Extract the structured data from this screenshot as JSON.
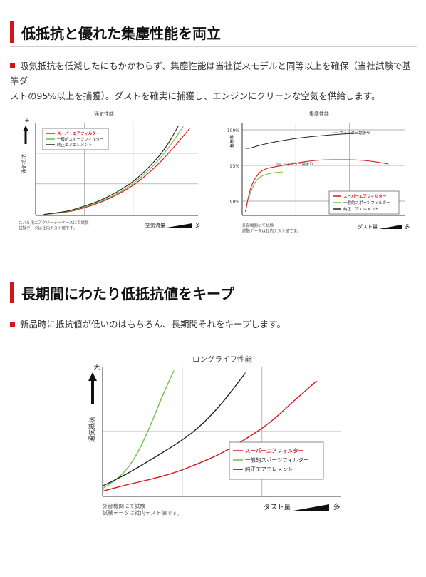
{
  "section1": {
    "title": "低抵抗と優れた集塵性能を両立",
    "desc_line1": "吸気抵抗を低減したにもかかわらず、集塵性能は当社従来モデルと同等以上を確保（当社試験で基準ダ",
    "desc_line2": "ストの95%以上を捕獲）。ダストを確実に捕獲し、エンジンにクリーンな空気を供給します。"
  },
  "section2": {
    "title": "長期間にわたり低抵抗値をキープ",
    "desc": "新品時に抵抗値が低いのはもちろん、長期間それをキープします。"
  },
  "colors": {
    "accent": "#d7141a",
    "super_air_filter": "#d7141a",
    "sports_filter": "#6cbf4a",
    "oem_element": "#222222",
    "grid": "#9a9a9a"
  },
  "chart_data": [
    {
      "type": "line",
      "title": "通気性能",
      "ylabel": "通気抵抗",
      "y_high_label": "大",
      "xlabel": "空気流量",
      "x_high_label": "多",
      "xlim": [
        0,
        10
      ],
      "ylim": [
        0,
        10
      ],
      "grid": true,
      "legend_position": "top-left",
      "footnote_line1": "スバル用エアクリーナーケースにて試験",
      "footnote_line2": "試験データは社内テスト値です。",
      "series": [
        {
          "name": "スーパーエアフィルター",
          "color": "#d7141a",
          "x": [
            0.5,
            2,
            3,
            4,
            5,
            6,
            7,
            8,
            9.5
          ],
          "y": [
            0.1,
            0.35,
            0.8,
            1.4,
            2.2,
            3.2,
            4.6,
            6.3,
            9.4
          ]
        },
        {
          "name": "一般的スポーツフィルター",
          "color": "#6cbf4a",
          "x": [
            0.5,
            2,
            3,
            4,
            5,
            6,
            7,
            8,
            9.1
          ],
          "y": [
            0.1,
            0.4,
            0.9,
            1.5,
            2.3,
            3.4,
            4.9,
            6.8,
            9.6
          ]
        },
        {
          "name": "純正エアエレメント",
          "color": "#222222",
          "x": [
            0.5,
            2,
            3,
            4,
            5,
            6,
            7,
            8,
            8.8
          ],
          "y": [
            0.1,
            0.45,
            1.0,
            1.6,
            2.5,
            3.6,
            5.2,
            7.2,
            9.7
          ]
        }
      ]
    },
    {
      "type": "line",
      "title": "集塵性能",
      "ylabel": "集塵率",
      "xlabel": "ダスト量",
      "x_high_label": "多",
      "xlim": [
        0,
        10
      ],
      "ylim": [
        88,
        101
      ],
      "yticks": [
        90,
        95,
        100
      ],
      "ytick_labels": [
        "90%",
        "95%",
        "100%"
      ],
      "grid": true,
      "legend_position": "bottom-right",
      "footnote_line1": "外部機関にて試験",
      "footnote_line2": "試験データは社内テスト値です。",
      "annotations": [
        "フィルター詰まり",
        "フィルター詰まり"
      ],
      "series": [
        {
          "name": "スーパーエアフィルター",
          "color": "#d7141a",
          "x": [
            0.2,
            0.5,
            1,
            1.5,
            2,
            3,
            4,
            5,
            6,
            7,
            8,
            9
          ],
          "y": [
            88.5,
            92,
            94,
            94.6,
            94.8,
            95.2,
            95.6,
            95.8,
            95.8,
            95.8,
            95.6,
            95.2
          ]
        },
        {
          "name": "一般的スポーツフィルター",
          "color": "#6cbf4a",
          "x": [
            0.4,
            0.7,
            1,
            1.5,
            2,
            2.5
          ],
          "y": [
            90.5,
            92.3,
            93.3,
            93.8,
            94.0,
            94.1
          ]
        },
        {
          "name": "純正エアエレメント",
          "color": "#222222",
          "x": [
            0.2,
            0.5,
            1,
            2,
            3,
            4,
            5,
            6,
            7,
            7.8
          ],
          "y": [
            97.4,
            97.4,
            97.8,
            98.3,
            98.7,
            99.0,
            99.2,
            99.4,
            99.5,
            99.6
          ]
        }
      ]
    },
    {
      "type": "line",
      "title": "ロングライフ性能",
      "ylabel": "通気抵抗",
      "y_high_label": "大",
      "xlabel": "ダスト量",
      "x_high_label": "多",
      "xlim": [
        0,
        10
      ],
      "ylim": [
        0,
        10
      ],
      "grid": true,
      "legend_position": "bottom-right",
      "footnote_line1": "外部機関にて試験",
      "footnote_line2": "試験データは社内テスト値です。",
      "series": [
        {
          "name": "スーパーエアフィルター",
          "color": "#d7141a",
          "x": [
            0,
            1,
            2,
            3,
            4,
            5,
            6,
            7,
            8,
            9
          ],
          "y": [
            0.4,
            0.9,
            1.3,
            1.8,
            2.5,
            3.3,
            4.4,
            5.6,
            7.3,
            8.9
          ]
        },
        {
          "name": "一般的スポーツフィルター",
          "color": "#6cbf4a",
          "x": [
            0,
            0.5,
            1,
            1.5,
            2,
            2.5,
            3.0
          ],
          "y": [
            0.6,
            1.2,
            2.0,
            3.4,
            5.4,
            7.7,
            9.7
          ]
        },
        {
          "name": "純正エアエレメント",
          "color": "#222222",
          "x": [
            0,
            1,
            2,
            3,
            4,
            5,
            6
          ],
          "y": [
            0.8,
            1.7,
            2.8,
            3.9,
            5.2,
            7.1,
            9.5
          ]
        }
      ]
    }
  ]
}
